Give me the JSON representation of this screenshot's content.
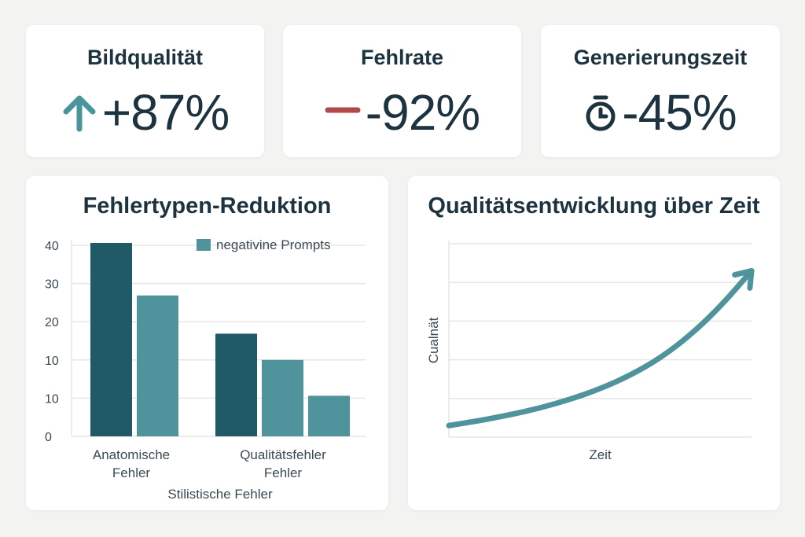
{
  "kpis": [
    {
      "title": "Bildqualität",
      "value": "+87%",
      "icon": "arrow-up-icon",
      "icon_color": "#4a949c"
    },
    {
      "title": "Fehlrate",
      "value": "-92%",
      "icon": "minus-icon",
      "icon_color": "#b04a4a"
    },
    {
      "title": "Generierungszeit",
      "value": "-45%",
      "icon": "stopwatch-icon",
      "icon_color": "#1d3340"
    }
  ],
  "colors": {
    "dark_teal": "#1f5a66",
    "mid_teal": "#4f939c",
    "grid": "#e6e6e6",
    "text": "#1d3340",
    "axis_text": "#3a4a52"
  },
  "chart_data": [
    {
      "type": "bar",
      "title": "Fehlertypen-Reduktion",
      "y_tick_labels": [
        "40",
        "30",
        "20",
        "10",
        "10",
        "0"
      ],
      "ylim": [
        0,
        40
      ],
      "legend": {
        "label": "negativine Prompts",
        "placement": "top-right"
      },
      "category_labels": [
        [
          "Anatomische",
          "Fehler"
        ],
        [
          "Qualitätsfehler",
          "Fehler"
        ]
      ],
      "xlabel": "Stilistische Fehler",
      "groups": [
        {
          "values": [
            40.5,
            29.5
          ]
        },
        {
          "values": [
            21.5,
            16,
            8.5
          ]
        }
      ],
      "grid": true
    },
    {
      "type": "line",
      "title": "Qualitätsentwicklung über Zeit",
      "xlabel": "Zeit",
      "ylabel": "Cualnät",
      "grid": true,
      "x": [
        0,
        10,
        20,
        30,
        40,
        50,
        60,
        70,
        80,
        90,
        100
      ],
      "y": [
        6,
        8.5,
        11.5,
        15,
        19.5,
        25,
        32,
        41,
        53,
        68,
        86
      ],
      "ylim": [
        0,
        100
      ],
      "arrow_end": true
    }
  ]
}
